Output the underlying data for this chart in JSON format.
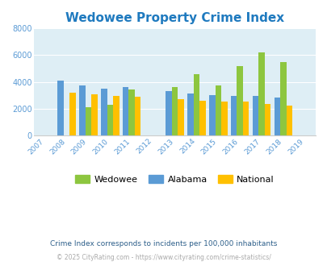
{
  "title": "Wedowee Property Crime Index",
  "all_years": [
    2007,
    2008,
    2009,
    2010,
    2011,
    2012,
    2013,
    2014,
    2015,
    2016,
    2017,
    2018,
    2019
  ],
  "data_years": [
    2008,
    2009,
    2010,
    2011,
    2013,
    2014,
    2015,
    2016,
    2017,
    2018
  ],
  "wedowee": [
    0,
    2100,
    2300,
    3400,
    3600,
    4600,
    3750,
    5200,
    6200,
    5500
  ],
  "alabama": [
    4100,
    3750,
    3500,
    3600,
    3300,
    3150,
    3000,
    2950,
    2950,
    2850
  ],
  "national": [
    3200,
    3050,
    2950,
    2900,
    2700,
    2600,
    2500,
    2500,
    2350,
    2200
  ],
  "wedowee_color": "#8dc63f",
  "alabama_color": "#5b9bd5",
  "national_color": "#ffc000",
  "bg_color": "#deeef5",
  "ylim": [
    0,
    8000
  ],
  "yticks": [
    0,
    2000,
    4000,
    6000,
    8000
  ],
  "title_color": "#1f7abf",
  "title_fontsize": 11,
  "axis_label_color": "#5b9bd5",
  "footnote1": "Crime Index corresponds to incidents per 100,000 inhabitants",
  "footnote2": "© 2025 CityRating.com - https://www.cityrating.com/crime-statistics/",
  "footnote1_color": "#2d5f8a",
  "footnote2_color": "#aaaaaa",
  "legend_labels": [
    "Wedowee",
    "Alabama",
    "National"
  ],
  "bar_width": 0.28
}
